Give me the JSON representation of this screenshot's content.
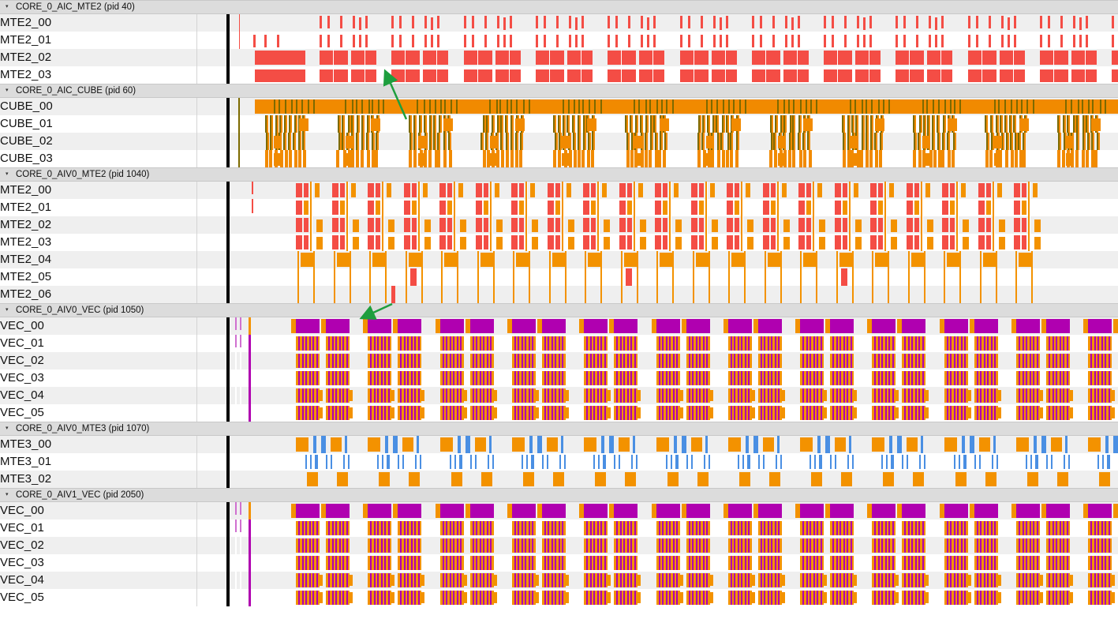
{
  "colors": {
    "mte2": "#f44d45",
    "cube": "#f18a00",
    "cube_dark": "#7d6a00",
    "vec": "#b000b0",
    "mte3": "#4a8fe3",
    "orange": "#f39200",
    "arrow": "#1e9e3e"
  },
  "groups": [
    {
      "title": "CORE_0_AIC_MTE2 (pid 40)",
      "style": "mte2",
      "rows": [
        "MTE2_00",
        "MTE2_01",
        "MTE2_02",
        "MTE2_03"
      ]
    },
    {
      "title": "CORE_0_AIC_CUBE (pid 60)",
      "style": "cube",
      "rows": [
        "CUBE_00",
        "CUBE_01",
        "CUBE_02",
        "CUBE_03"
      ]
    },
    {
      "title": "CORE_0_AIV0_MTE2 (pid 1040)",
      "style": "aivmte2",
      "rows": [
        "MTE2_00",
        "MTE2_01",
        "MTE2_02",
        "MTE2_03",
        "MTE2_04",
        "MTE2_05",
        "MTE2_06"
      ]
    },
    {
      "title": "CORE_0_AIV0_VEC (pid 1050)",
      "style": "vec",
      "rows": [
        "VEC_00",
        "VEC_01",
        "VEC_02",
        "VEC_03",
        "VEC_04",
        "VEC_05"
      ]
    },
    {
      "title": "CORE_0_AIV0_MTE3 (pid 1070)",
      "style": "mte3",
      "rows": [
        "MTE3_00",
        "MTE3_01",
        "MTE3_02"
      ]
    },
    {
      "title": "CORE_0_AIV1_VEC (pid 2050)",
      "style": "vec",
      "rows": [
        "VEC_00",
        "VEC_01",
        "VEC_02",
        "VEC_03",
        "VEC_04",
        "VEC_05"
      ]
    }
  ],
  "annotations": [
    {
      "name": "flow-arrow-mte2-to-cube"
    },
    {
      "name": "flow-arrow-aivmte2-to-vec"
    }
  ]
}
